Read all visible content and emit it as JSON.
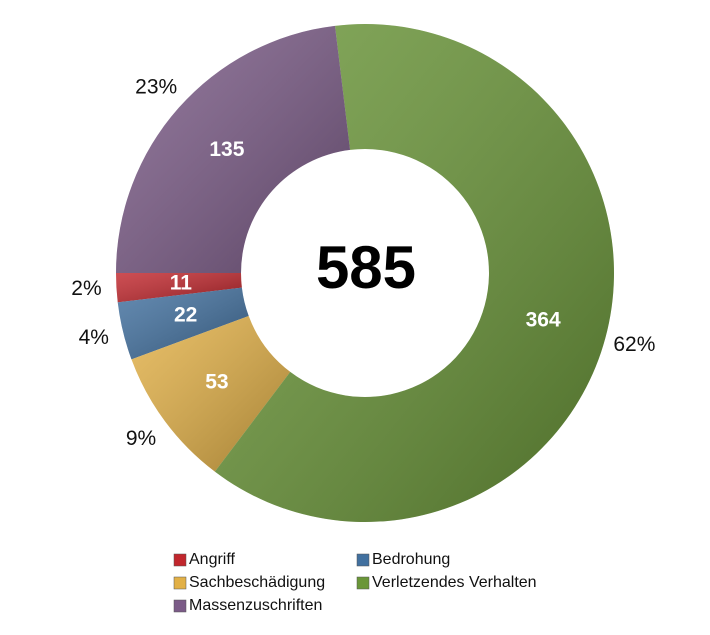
{
  "chart_data": {
    "type": "donut",
    "total": 585,
    "categories": [
      "Angriff",
      "Bedrohung",
      "Sachbeschädigung",
      "Verletzendes Verhalten",
      "Massenzuschriften"
    ],
    "values": [
      11,
      22,
      53,
      364,
      135
    ],
    "percent_labels": [
      "2%",
      "4%",
      "9%",
      "62%",
      "23%"
    ],
    "colors": [
      "#c1272d",
      "#41709f",
      "#e2b046",
      "#6a9638",
      "#7b5b87"
    ],
    "legend": true
  }
}
